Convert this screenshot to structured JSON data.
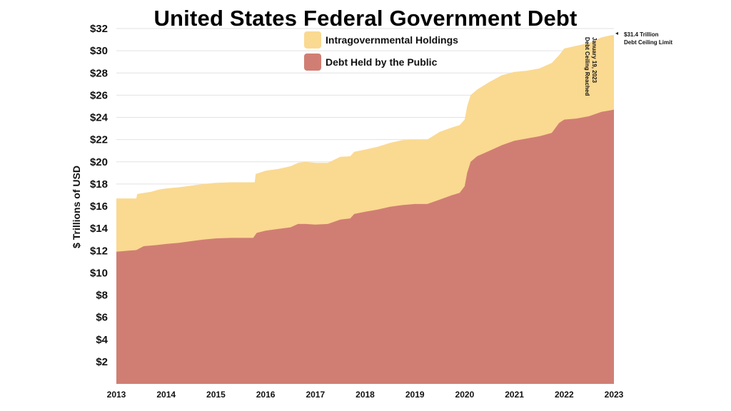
{
  "chart_data": {
    "type": "area",
    "title": "United States Federal Government Debt",
    "ylabel": "$ Trillions of USD",
    "xlabel": "",
    "ylim": [
      0,
      32
    ],
    "xlim": [
      2013,
      2023
    ],
    "y_ticks": [
      "$2",
      "$4",
      "$6",
      "$8",
      "$10",
      "$12",
      "$14",
      "$16",
      "$18",
      "$20",
      "$22",
      "$24",
      "$26",
      "$28",
      "$30",
      "$32"
    ],
    "x_ticks": [
      "2013",
      "2014",
      "2015",
      "2016",
      "2017",
      "2018",
      "2019",
      "2020",
      "2021",
      "2022",
      "2023"
    ],
    "grid": true,
    "legend_position": "top-center",
    "stacked": true,
    "series": [
      {
        "name": "Debt Held by the Public",
        "color": "#d07e73",
        "points": [
          [
            2013.0,
            11.9
          ],
          [
            2013.25,
            12.0
          ],
          [
            2013.4,
            12.05
          ],
          [
            2013.55,
            12.4
          ],
          [
            2013.8,
            12.5
          ],
          [
            2014.0,
            12.6
          ],
          [
            2014.25,
            12.7
          ],
          [
            2014.5,
            12.85
          ],
          [
            2014.75,
            13.0
          ],
          [
            2015.0,
            13.1
          ],
          [
            2015.3,
            13.15
          ],
          [
            2015.5,
            13.15
          ],
          [
            2015.75,
            13.15
          ],
          [
            2015.82,
            13.6
          ],
          [
            2016.0,
            13.8
          ],
          [
            2016.25,
            13.95
          ],
          [
            2016.5,
            14.1
          ],
          [
            2016.65,
            14.4
          ],
          [
            2016.8,
            14.4
          ],
          [
            2017.0,
            14.35
          ],
          [
            2017.25,
            14.4
          ],
          [
            2017.5,
            14.8
          ],
          [
            2017.7,
            14.9
          ],
          [
            2017.78,
            15.3
          ],
          [
            2018.0,
            15.5
          ],
          [
            2018.25,
            15.7
          ],
          [
            2018.5,
            15.95
          ],
          [
            2018.75,
            16.1
          ],
          [
            2019.0,
            16.2
          ],
          [
            2019.25,
            16.2
          ],
          [
            2019.5,
            16.6
          ],
          [
            2019.75,
            17.0
          ],
          [
            2019.9,
            17.2
          ],
          [
            2020.0,
            17.8
          ],
          [
            2020.05,
            19.0
          ],
          [
            2020.12,
            20.0
          ],
          [
            2020.25,
            20.5
          ],
          [
            2020.5,
            21.0
          ],
          [
            2020.75,
            21.5
          ],
          [
            2021.0,
            21.9
          ],
          [
            2021.25,
            22.1
          ],
          [
            2021.5,
            22.3
          ],
          [
            2021.75,
            22.6
          ],
          [
            2021.9,
            23.5
          ],
          [
            2022.0,
            23.8
          ],
          [
            2022.25,
            23.9
          ],
          [
            2022.5,
            24.1
          ],
          [
            2022.75,
            24.5
          ],
          [
            2022.95,
            24.65
          ],
          [
            2023.0,
            24.7
          ]
        ]
      },
      {
        "name": "Intragovernmental Holdings",
        "color": "#fad991",
        "total_points": [
          [
            2013.0,
            16.7
          ],
          [
            2013.4,
            16.7
          ],
          [
            2013.42,
            17.1
          ],
          [
            2013.7,
            17.3
          ],
          [
            2013.85,
            17.5
          ],
          [
            2014.0,
            17.6
          ],
          [
            2014.25,
            17.7
          ],
          [
            2014.5,
            17.85
          ],
          [
            2014.75,
            18.0
          ],
          [
            2015.0,
            18.1
          ],
          [
            2015.3,
            18.15
          ],
          [
            2015.5,
            18.15
          ],
          [
            2015.78,
            18.15
          ],
          [
            2015.8,
            18.9
          ],
          [
            2016.0,
            19.2
          ],
          [
            2016.25,
            19.35
          ],
          [
            2016.5,
            19.6
          ],
          [
            2016.65,
            19.9
          ],
          [
            2016.8,
            20.0
          ],
          [
            2017.0,
            19.9
          ],
          [
            2017.25,
            19.9
          ],
          [
            2017.5,
            20.45
          ],
          [
            2017.7,
            20.5
          ],
          [
            2017.78,
            20.9
          ],
          [
            2018.0,
            21.1
          ],
          [
            2018.25,
            21.35
          ],
          [
            2018.5,
            21.7
          ],
          [
            2018.75,
            21.95
          ],
          [
            2019.0,
            22.0
          ],
          [
            2019.25,
            22.0
          ],
          [
            2019.5,
            22.7
          ],
          [
            2019.75,
            23.1
          ],
          [
            2019.9,
            23.3
          ],
          [
            2020.0,
            23.8
          ],
          [
            2020.05,
            25.0
          ],
          [
            2020.12,
            26.0
          ],
          [
            2020.25,
            26.5
          ],
          [
            2020.5,
            27.2
          ],
          [
            2020.75,
            27.8
          ],
          [
            2021.0,
            28.1
          ],
          [
            2021.25,
            28.2
          ],
          [
            2021.5,
            28.4
          ],
          [
            2021.75,
            28.9
          ],
          [
            2021.9,
            29.6
          ],
          [
            2022.0,
            30.2
          ],
          [
            2022.25,
            30.45
          ],
          [
            2022.5,
            30.7
          ],
          [
            2022.75,
            31.2
          ],
          [
            2022.95,
            31.4
          ],
          [
            2023.0,
            31.4
          ]
        ]
      }
    ],
    "annotations": {
      "ceiling_value": "$31.4 Trillion",
      "ceiling_label": "Debt Ceiling Limit",
      "event_date": "January 19, 2023",
      "event_label": "Debt Ceiling Reached"
    }
  }
}
